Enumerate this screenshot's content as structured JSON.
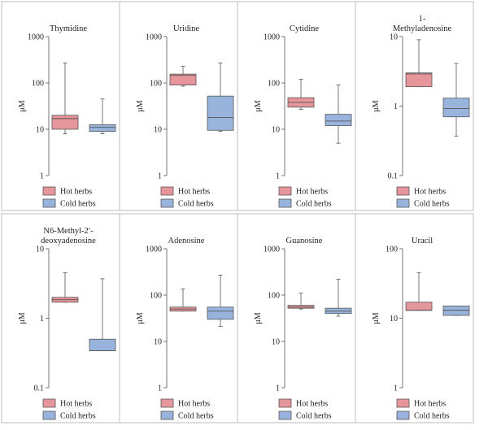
{
  "colors": {
    "hot": "#e6959a",
    "cold": "#98b4dc",
    "frame": "#bdbdbd"
  },
  "ylabel": "μM",
  "legend": {
    "hot": "Hot herbs",
    "cold": "Cold herbs"
  },
  "chart_data": [
    {
      "type": "box",
      "title": "Thymidine",
      "ylabel": "μM",
      "yscale": "log",
      "ylim": [
        1,
        1000
      ],
      "yticks": [
        "1",
        "10",
        "100",
        "1000"
      ],
      "series": [
        {
          "name": "Hot herbs",
          "min": 8,
          "q1": 10,
          "median": 17,
          "q3": 20,
          "max": 270
        },
        {
          "name": "Cold herbs",
          "min": 8,
          "q1": 9,
          "median": 11,
          "q3": 12.5,
          "max": 45
        }
      ]
    },
    {
      "type": "box",
      "title": "Uridine",
      "ylabel": "μM",
      "yscale": "log",
      "ylim": [
        1,
        1000
      ],
      "yticks": [
        "1",
        "10",
        "100",
        "1000"
      ],
      "series": [
        {
          "name": "Hot herbs",
          "min": 85,
          "q1": 90,
          "median": 145,
          "q3": 155,
          "max": 230
        },
        {
          "name": "Cold herbs",
          "min": 9,
          "q1": 9.5,
          "median": 18,
          "q3": 52,
          "max": 270
        }
      ]
    },
    {
      "type": "box",
      "title": "Cytidine",
      "ylabel": "μM",
      "yscale": "log",
      "ylim": [
        1,
        1000
      ],
      "yticks": [
        "1",
        "10",
        "100",
        "1000"
      ],
      "series": [
        {
          "name": "Hot herbs",
          "min": 27,
          "q1": 30,
          "median": 38,
          "q3": 48,
          "max": 120
        },
        {
          "name": "Cold herbs",
          "min": 5,
          "q1": 12,
          "median": 15,
          "q3": 21,
          "max": 90
        }
      ]
    },
    {
      "type": "box",
      "title": "1-\nMethyladenosine",
      "ylabel": "μM",
      "yscale": "log",
      "ylim": [
        0.1,
        10
      ],
      "yticks": [
        "0.1",
        "1",
        "10"
      ],
      "series": [
        {
          "name": "Hot herbs",
          "min": 1.9,
          "q1": 1.9,
          "median": 2.9,
          "q3": 3.0,
          "max": 9
        },
        {
          "name": "Cold herbs",
          "min": 0.37,
          "q1": 0.7,
          "median": 0.92,
          "q3": 1.3,
          "max": 4.1
        }
      ]
    },
    {
      "type": "box",
      "title": "N6-Methyl-2′-\ndeoxyadenosine",
      "ylabel": "μM",
      "yscale": "log",
      "ylim": [
        0.1,
        10
      ],
      "yticks": [
        "0.1",
        "1",
        "10"
      ],
      "series": [
        {
          "name": "Hot herbs",
          "min": 1.7,
          "q1": 1.7,
          "median": 1.85,
          "q3": 2.0,
          "max": 4.5
        },
        {
          "name": "Cold herbs",
          "min": 0.34,
          "q1": 0.34,
          "median": 0.34,
          "q3": 0.5,
          "max": 3.7
        }
      ]
    },
    {
      "type": "box",
      "title": "Adenosine",
      "ylabel": "μM",
      "yscale": "log",
      "ylim": [
        1,
        1000
      ],
      "yticks": [
        "1",
        "10",
        "100",
        "1000"
      ],
      "series": [
        {
          "name": "Hot herbs",
          "min": 45,
          "q1": 45,
          "median": 50,
          "q3": 55,
          "max": 135
        },
        {
          "name": "Cold herbs",
          "min": 21,
          "q1": 30,
          "median": 45,
          "q3": 55,
          "max": 270
        }
      ]
    },
    {
      "type": "box",
      "title": "Guanosine",
      "ylabel": "μM",
      "yscale": "log",
      "ylim": [
        1,
        1000
      ],
      "yticks": [
        "1",
        "10",
        "100",
        "1000"
      ],
      "series": [
        {
          "name": "Hot herbs",
          "min": 50,
          "q1": 52,
          "median": 55,
          "q3": 60,
          "max": 110
        },
        {
          "name": "Cold herbs",
          "min": 35,
          "q1": 40,
          "median": 45,
          "q3": 52,
          "max": 220
        }
      ]
    },
    {
      "type": "box",
      "title": "Uracil",
      "ylabel": "μM",
      "yscale": "log",
      "ylim": [
        1,
        100
      ],
      "yticks": [
        "1",
        "10",
        "100"
      ],
      "series": [
        {
          "name": "Hot herbs",
          "min": 13,
          "q1": 13,
          "median": 13,
          "q3": 17,
          "max": 45
        },
        {
          "name": "Cold herbs",
          "min": 11,
          "q1": 11,
          "median": 13,
          "q3": 15,
          "max": 15
        }
      ]
    }
  ]
}
